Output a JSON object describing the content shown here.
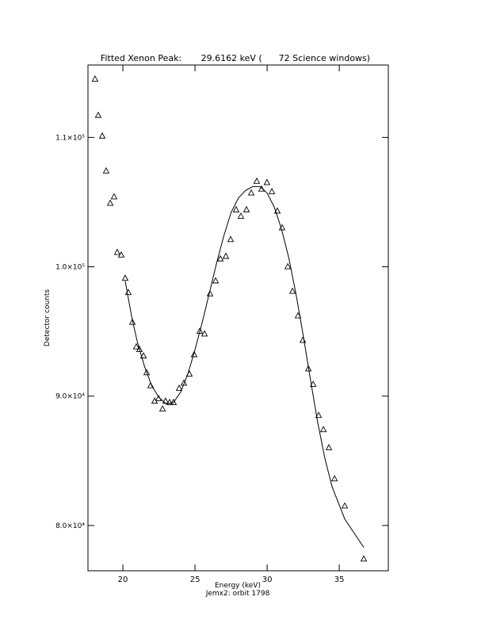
{
  "chart_data": {
    "type": "scatter",
    "title": "Fitted Xenon Peak:       29.6162 keV (      72 Science windows)",
    "xlabel": "Energy (keV)",
    "ylabel": "Detector counts",
    "subtitle": "Jemx2: orbit 1798",
    "xlim": [
      17.58,
      38.4
    ],
    "ylim": [
      76500,
      115600
    ],
    "xticks": [
      20,
      25,
      30,
      35
    ],
    "yticks": [
      {
        "value": 80000,
        "label": "8.0×10⁴"
      },
      {
        "value": 90000,
        "label": "9.0×10⁴"
      },
      {
        "value": 100000,
        "label": "1.0×10⁵"
      },
      {
        "value": 110000,
        "label": "1.1×10⁵"
      }
    ],
    "color": "#000000",
    "points": {
      "x": [
        18.07,
        18.29,
        18.57,
        18.84,
        19.12,
        19.39,
        19.61,
        19.89,
        20.16,
        20.38,
        20.66,
        20.93,
        21.15,
        21.43,
        21.65,
        21.92,
        22.2,
        22.47,
        22.75,
        22.96,
        23.24,
        23.51,
        23.9,
        24.23,
        24.61,
        24.94,
        25.33,
        25.66,
        26.04,
        26.43,
        26.76,
        27.14,
        27.47,
        27.85,
        28.18,
        28.57,
        28.9,
        29.28,
        29.61,
        29.99,
        30.33,
        30.71,
        31.04,
        31.43,
        31.76,
        32.14,
        32.47,
        32.86,
        33.19,
        33.57,
        33.9,
        34.28,
        34.67,
        35.38,
        36.7
      ],
      "y": [
        114500,
        111700,
        110100,
        107400,
        104900,
        105400,
        101100,
        100900,
        99100,
        98000,
        95700,
        93800,
        93600,
        93100,
        91800,
        90800,
        89600,
        89800,
        89000,
        89600,
        89500,
        89500,
        90600,
        91000,
        91700,
        93200,
        95000,
        94800,
        97900,
        98900,
        100600,
        100800,
        102100,
        104400,
        103900,
        104400,
        105700,
        106600,
        106000,
        106500,
        105800,
        104300,
        103000,
        100000,
        98100,
        96200,
        94300,
        92100,
        90900,
        88500,
        87400,
        86000,
        83600,
        81500,
        77400
      ]
    },
    "fit": {
      "x": [
        20.16,
        20.6,
        21.0,
        21.5,
        22.0,
        22.5,
        23.0,
        23.5,
        24.0,
        24.5,
        25.0,
        25.5,
        26.0,
        26.5,
        27.0,
        27.5,
        28.0,
        28.5,
        29.0,
        29.5,
        30.0,
        30.5,
        31.0,
        31.5,
        32.0,
        32.5,
        33.0,
        33.5,
        34.0,
        34.5,
        35.38,
        36.7
      ],
      "y": [
        98900,
        96200,
        94200,
        92300,
        90800,
        89900,
        89400,
        89500,
        90300,
        91700,
        93600,
        95700,
        98000,
        100300,
        102400,
        104200,
        105300,
        105900,
        106200,
        106200,
        105700,
        104600,
        102900,
        100700,
        97900,
        94700,
        91300,
        88000,
        85200,
        83000,
        80500,
        78300
      ]
    }
  }
}
